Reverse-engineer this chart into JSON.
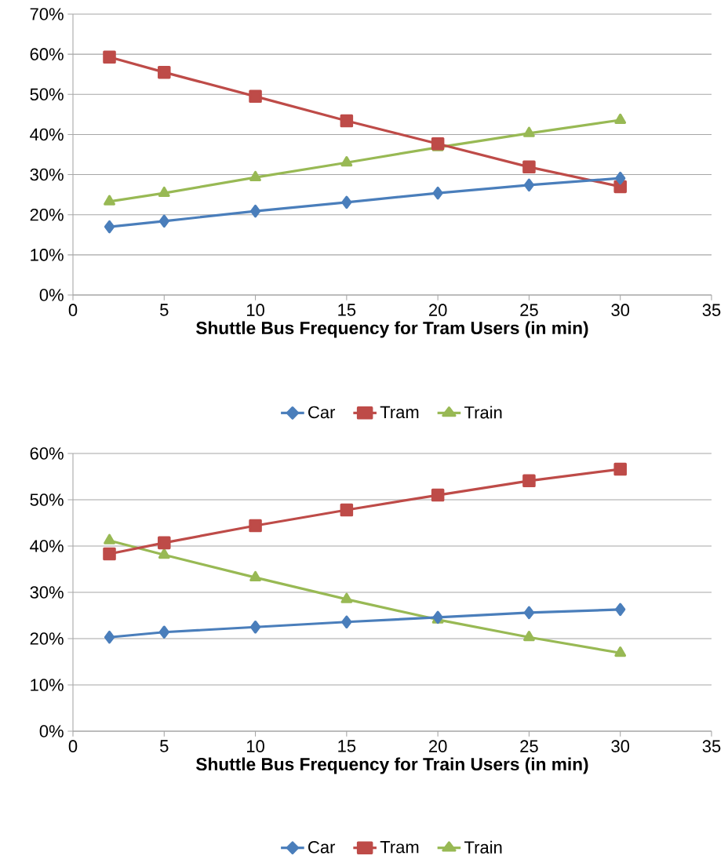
{
  "chart_data": [
    {
      "type": "line",
      "xlabel": "Shuttle Bus Frequency for Tram Users (in min)",
      "x": [
        2,
        5,
        10,
        15,
        20,
        25,
        30
      ],
      "series": [
        {
          "name": "Car",
          "color": "#4a7ebb",
          "marker": "diamond",
          "values": [
            17.0,
            18.4,
            20.9,
            23.1,
            25.4,
            27.4,
            29.1
          ]
        },
        {
          "name": "Tram",
          "color": "#be4b48",
          "marker": "square",
          "values": [
            59.3,
            55.5,
            49.5,
            43.4,
            37.7,
            31.9,
            27.0
          ]
        },
        {
          "name": "Train",
          "color": "#98b954",
          "marker": "triangle",
          "values": [
            23.3,
            25.4,
            29.3,
            33.0,
            36.8,
            40.3,
            43.6
          ]
        }
      ],
      "xlim": [
        0,
        35
      ],
      "xticks": [
        0,
        5,
        10,
        15,
        20,
        25,
        30,
        35
      ],
      "ylim": [
        0,
        70
      ],
      "yticks": [
        {
          "value": 0,
          "label": "0%"
        },
        {
          "value": 10,
          "label": "10%"
        },
        {
          "value": 20,
          "label": "20%"
        },
        {
          "value": 30,
          "label": "30%"
        },
        {
          "value": 40,
          "label": "40%"
        },
        {
          "value": 50,
          "label": "50%"
        },
        {
          "value": 60,
          "label": "60%"
        },
        {
          "value": 70,
          "label": "70%"
        }
      ],
      "grid": "y",
      "legend": "bottom"
    },
    {
      "type": "line",
      "xlabel": "Shuttle Bus Frequency for Train Users (in min)",
      "x": [
        2,
        5,
        10,
        15,
        20,
        25,
        30
      ],
      "series": [
        {
          "name": "Car",
          "color": "#4a7ebb",
          "marker": "diamond",
          "values": [
            20.3,
            21.4,
            22.5,
            23.6,
            24.6,
            25.6,
            26.3
          ]
        },
        {
          "name": "Tram",
          "color": "#be4b48",
          "marker": "square",
          "values": [
            38.3,
            40.7,
            44.4,
            47.8,
            51.0,
            54.1,
            56.6
          ]
        },
        {
          "name": "Train",
          "color": "#98b954",
          "marker": "triangle",
          "values": [
            41.2,
            38.1,
            33.2,
            28.5,
            24.1,
            20.3,
            16.9
          ]
        }
      ],
      "xlim": [
        0,
        35
      ],
      "xticks": [
        0,
        5,
        10,
        15,
        20,
        25,
        30,
        35
      ],
      "ylim": [
        0,
        60
      ],
      "yticks": [
        {
          "value": 0,
          "label": "0%"
        },
        {
          "value": 10,
          "label": "10%"
        },
        {
          "value": 20,
          "label": "20%"
        },
        {
          "value": 30,
          "label": "30%"
        },
        {
          "value": 40,
          "label": "40%"
        },
        {
          "value": 50,
          "label": "50%"
        },
        {
          "value": 60,
          "label": "60%"
        }
      ],
      "grid": "y",
      "legend": "bottom"
    }
  ]
}
